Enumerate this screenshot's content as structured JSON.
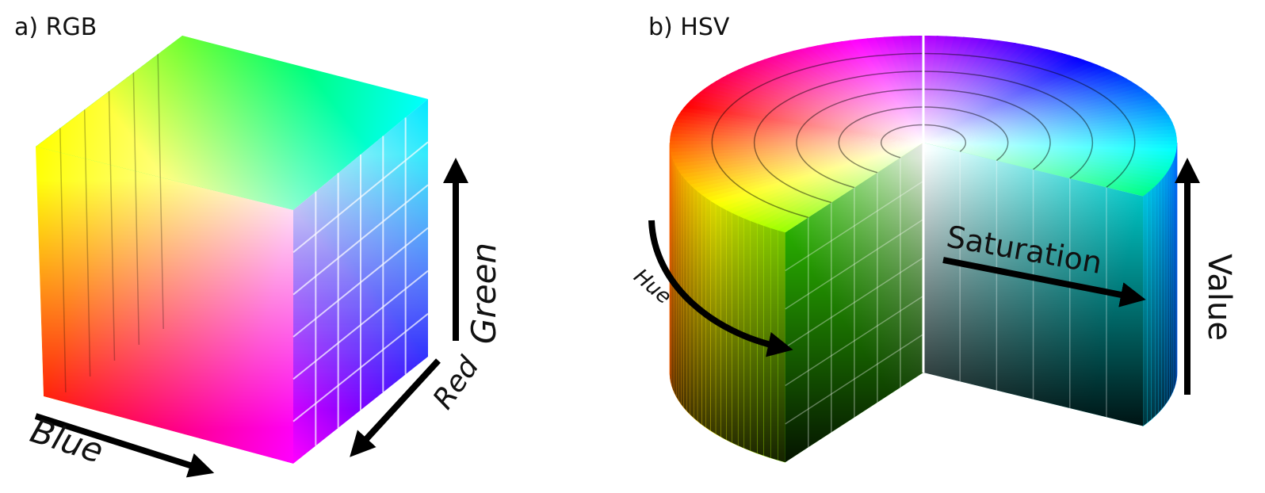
{
  "panels": [
    {
      "title": "a) RGB",
      "axes": [
        "Green",
        "Red",
        "Blue"
      ]
    },
    {
      "title": "b) HSV",
      "axes": [
        "Hue",
        "Saturation",
        "Value"
      ]
    }
  ]
}
